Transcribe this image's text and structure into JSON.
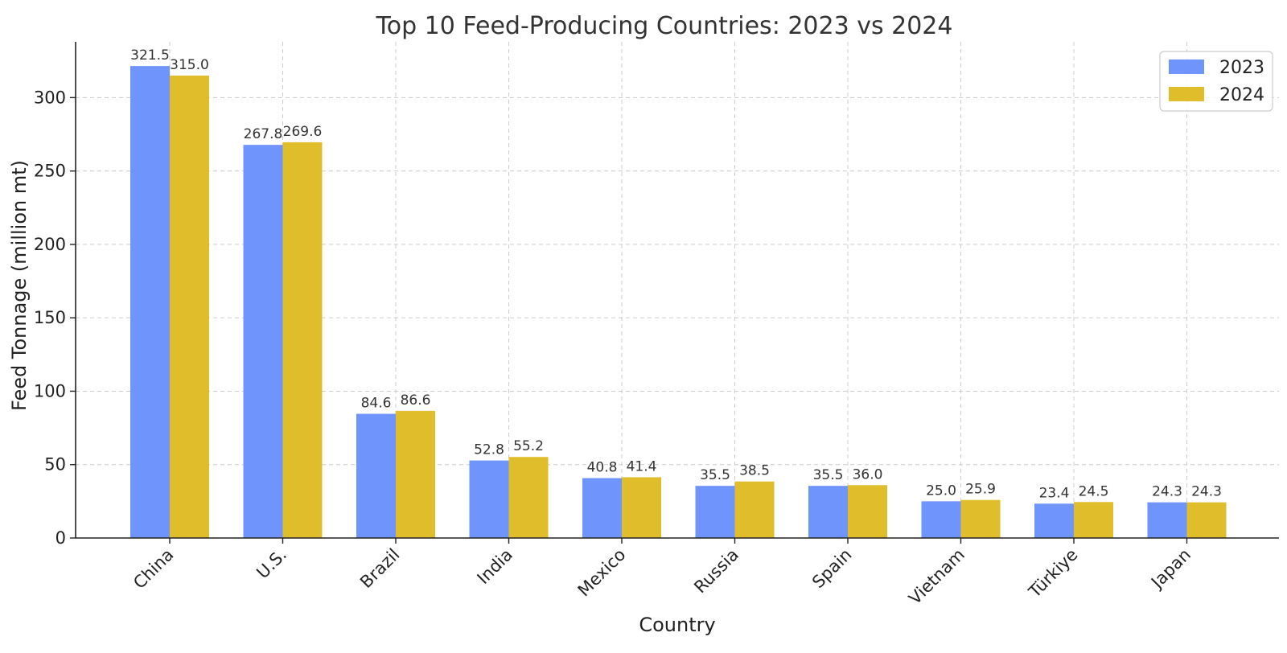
{
  "chart_data": {
    "type": "bar",
    "title": "Top 10 Feed-Producing Countries: 2023 vs 2024",
    "xlabel": "Country",
    "ylabel": "Feed Tonnage (million mt)",
    "categories": [
      "China",
      "U.S.",
      "Brazil",
      "India",
      "Mexico",
      "Russia",
      "Spain",
      "Vietnam",
      "Türkiye",
      "Japan"
    ],
    "series": [
      {
        "name": "2023",
        "color": "#6f94fc",
        "values": [
          321.5,
          267.8,
          84.6,
          52.8,
          40.8,
          35.5,
          35.5,
          25.0,
          23.4,
          24.3
        ],
        "labels": [
          "321.5",
          "267.8",
          "84.6",
          "52.8",
          "40.8",
          "35.5",
          "35.5",
          "25.0",
          "23.4",
          "24.3"
        ]
      },
      {
        "name": "2024",
        "color": "#e0be2b",
        "values": [
          315.0,
          269.6,
          86.6,
          55.2,
          41.4,
          38.5,
          36.0,
          25.9,
          24.5,
          24.3
        ],
        "labels": [
          "315.0",
          "269.6",
          "86.6",
          "55.2",
          "41.4",
          "38.5",
          "36.0",
          "25.9",
          "24.5",
          "24.3"
        ]
      }
    ],
    "ylim": [
      0,
      338
    ],
    "yticks": [
      0,
      50,
      100,
      150,
      200,
      250,
      300
    ],
    "ytick_labels": [
      "0",
      "50",
      "100",
      "150",
      "200",
      "250",
      "300"
    ],
    "grid": true,
    "legend_position": "top-right"
  }
}
